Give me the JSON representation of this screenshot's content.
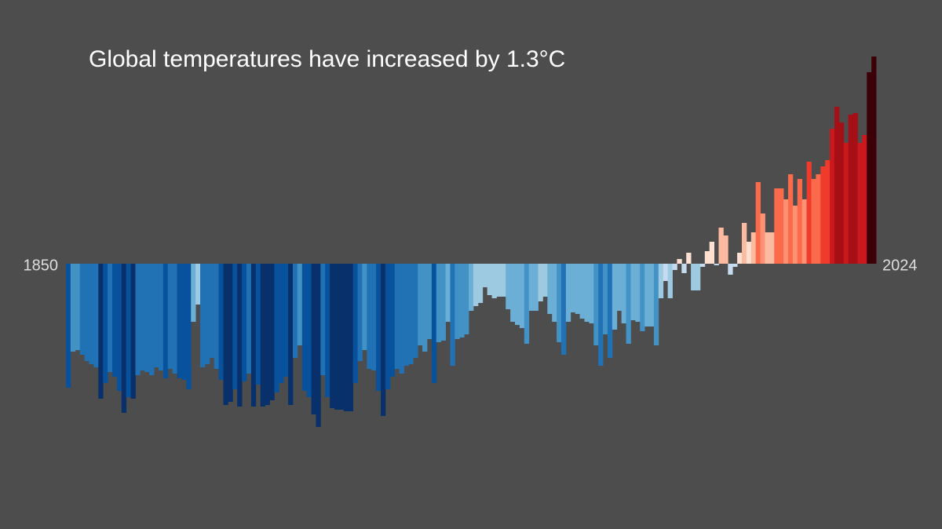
{
  "chart_data": {
    "type": "bar",
    "title": "Global temperatures have increased by 1.3°C",
    "xticks": [
      1850,
      2024
    ],
    "ylim": [
      -1.32,
      1.48
    ],
    "color_scale": [
      "#08306b",
      "#08519c",
      "#2171b5",
      "#4292c6",
      "#6baed6",
      "#9ecae1",
      "#c6dbef",
      "#fee0d2",
      "#fcbba1",
      "#fc9272",
      "#fb6a4a",
      "#ef3b2c",
      "#cb181d",
      "#a50f15",
      "#67000d",
      "#3b0008"
    ],
    "color_range": [
      -1.0,
      1.3
    ],
    "values": [
      -0.79,
      -0.56,
      -0.55,
      -0.58,
      -0.62,
      -0.64,
      -0.66,
      -0.86,
      -0.76,
      -0.69,
      -0.72,
      -0.81,
      -0.95,
      -0.85,
      -0.86,
      -0.71,
      -0.68,
      -0.69,
      -0.71,
      -0.66,
      -0.68,
      -0.73,
      -0.67,
      -0.7,
      -0.73,
      -0.74,
      -0.8,
      -0.37,
      -0.26,
      -0.66,
      -0.64,
      -0.6,
      -0.67,
      -0.74,
      -0.9,
      -0.88,
      -0.8,
      -0.91,
      -0.75,
      -0.7,
      -0.91,
      -0.77,
      -0.91,
      -0.9,
      -0.87,
      -0.82,
      -0.76,
      -0.72,
      -0.9,
      -0.6,
      -0.52,
      -0.81,
      -0.85,
      -0.96,
      -1.04,
      -0.71,
      -0.85,
      -0.92,
      -0.93,
      -0.93,
      -0.94,
      -0.94,
      -0.76,
      -0.62,
      -0.55,
      -0.67,
      -0.68,
      -0.81,
      -0.97,
      -0.8,
      -0.72,
      -0.67,
      -0.7,
      -0.65,
      -0.64,
      -0.6,
      -0.52,
      -0.56,
      -0.48,
      -0.76,
      -0.5,
      -0.49,
      -0.37,
      -0.65,
      -0.48,
      -0.47,
      -0.45,
      -0.3,
      -0.27,
      -0.25,
      -0.15,
      -0.2,
      -0.22,
      -0.21,
      -0.21,
      -0.29,
      -0.37,
      -0.39,
      -0.41,
      -0.51,
      -0.3,
      -0.3,
      -0.24,
      -0.21,
      -0.32,
      -0.37,
      -0.5,
      -0.58,
      -0.37,
      -0.31,
      -0.32,
      -0.35,
      -0.37,
      -0.38,
      -0.52,
      -0.65,
      -0.45,
      -0.6,
      -0.42,
      -0.3,
      -0.38,
      -0.51,
      -0.36,
      -0.37,
      -0.43,
      -0.4,
      -0.4,
      -0.52,
      -0.22,
      -0.11,
      -0.22,
      -0.04,
      0.03,
      -0.06,
      0.07,
      -0.17,
      -0.17,
      -0.02,
      0.08,
      0.14,
      -0.01,
      0.23,
      0.18,
      -0.07,
      -0.02,
      0.07,
      0.26,
      0.14,
      0.2,
      0.52,
      0.32,
      0.2,
      0.2,
      0.48,
      0.48,
      0.41,
      0.57,
      0.37,
      0.54,
      0.41,
      0.65,
      0.54,
      0.57,
      0.62,
      0.66,
      0.86,
      1.0,
      0.9,
      0.77,
      0.95,
      0.96,
      0.77,
      0.82,
      1.22,
      1.32
    ]
  }
}
